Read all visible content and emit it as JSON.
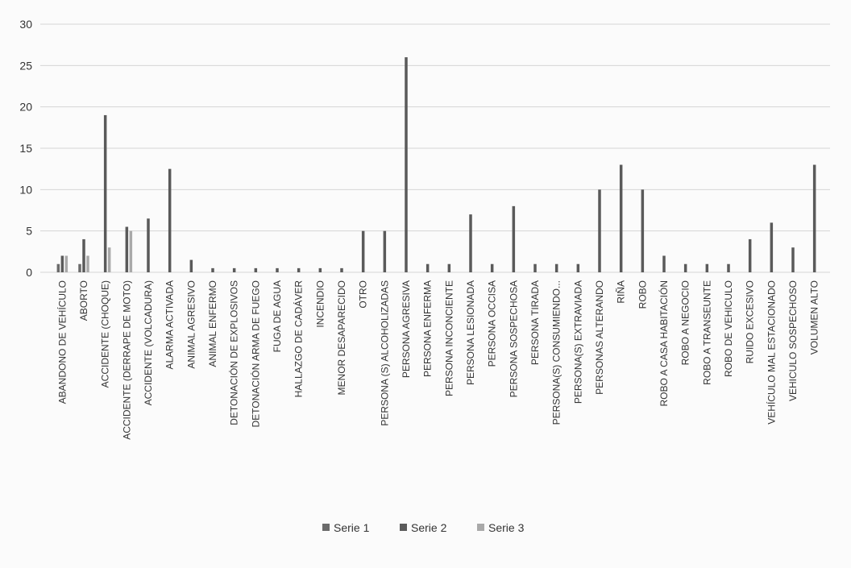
{
  "chart_data": {
    "type": "bar",
    "ylim": [
      0,
      30
    ],
    "yticks": [
      0,
      5,
      10,
      15,
      20,
      25,
      30
    ],
    "grid": true,
    "legend_position": "bottom",
    "categories": [
      "ABANDONO DE VEHÍCULO",
      "ABORTO",
      "ACCIDENTE (CHOQUE)",
      "ACCIDENTE (DERRAPE DE MOTO)",
      "ACCIDENTE (VOLCADURA)",
      "ALARMA ACTIVADA",
      "ANIMAL AGRESIVO",
      "ANIMAL ENFERMO",
      "DETONACIÓN DE EXPLOSIVOS",
      "DETONACIÓN ARMA DE FUEGO",
      "FUGA DE AGUA",
      "HALLAZGO DE CADÁVER",
      "INCENDIO",
      "MENOR DESAPARECIDO",
      "OTRO",
      "PERSONA (S) ALCOHOLIZADAS",
      "PERSONA AGRESIVA",
      "PERSONA ENFERMA",
      "PERSONA INCONCIENTE",
      "PERSONA LESIONADA",
      "PERSONA OCCISA",
      "PERSONA SOSPECHOSA",
      "PERSONA TIRADA",
      "PERSONA(S) CONSUMIENDO...",
      "PERSONA(S) EXTRAVIADA",
      "PERSONAS ALTERANDO",
      "RIÑA",
      "ROBO",
      "ROBO A CASA HABITACIÓN",
      "ROBO A NEGOCIO",
      "ROBO A TRANSEUNTE",
      "ROBO DE VEHICULO",
      "RUIDO EXCESIVO",
      "VEHÍCULO MAL ESTACIONADO",
      "VEHICULO SOSPECHOSO",
      "VOLUMEN ALTO"
    ],
    "series": [
      {
        "name": "Serie 1",
        "color": "#6b6b6b",
        "values": [
          1,
          1,
          0,
          0,
          0,
          0,
          0,
          0,
          0,
          0,
          0,
          0,
          0,
          0,
          0,
          0,
          0,
          0,
          0,
          0,
          0,
          0,
          0,
          0,
          0,
          0,
          0,
          0,
          0,
          0,
          0,
          0,
          0,
          0,
          0,
          0
        ]
      },
      {
        "name": "Serie 2",
        "color": "#5a5a5a",
        "values": [
          2,
          4,
          19,
          5.5,
          6.5,
          12.5,
          1.5,
          0.5,
          0.5,
          0.5,
          0.5,
          0.5,
          0.5,
          0.5,
          5,
          5,
          26,
          1,
          1,
          7,
          1,
          8,
          1,
          1,
          1,
          10,
          13,
          10,
          2,
          1,
          1,
          1,
          4,
          6,
          3,
          13
        ]
      },
      {
        "name": "Serie 3",
        "color": "#a9a9a9",
        "values": [
          2,
          2,
          3,
          5,
          0,
          0,
          0,
          0,
          0,
          0,
          0,
          0,
          0,
          0,
          0,
          0,
          0,
          0,
          0,
          0,
          0,
          0,
          0,
          0,
          0,
          0,
          0,
          0,
          0,
          0,
          0,
          0,
          0,
          0,
          0,
          0
        ]
      }
    ]
  }
}
